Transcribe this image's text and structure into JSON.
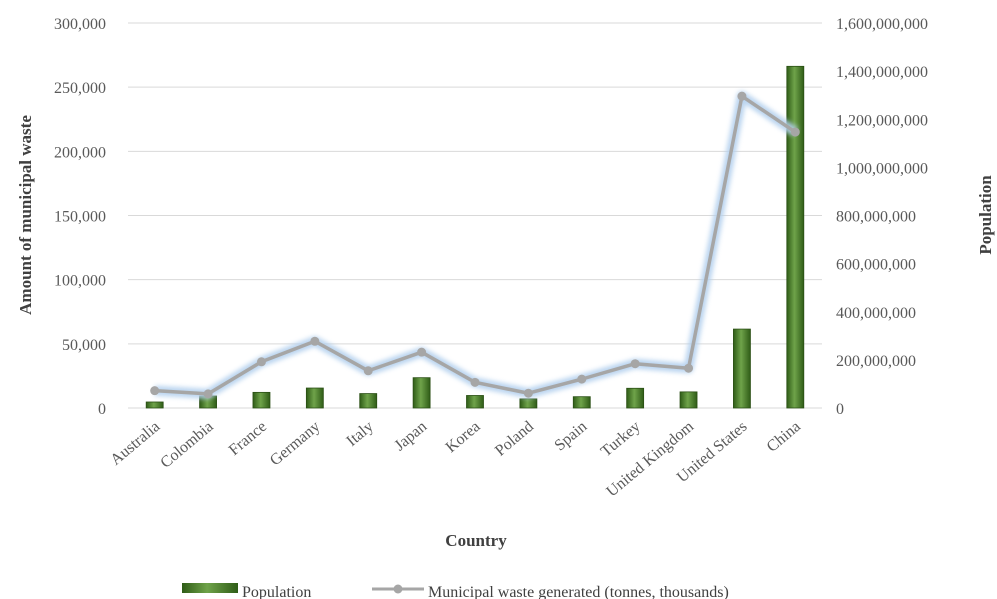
{
  "chart_data": {
    "type": "bar",
    "categories": [
      "Australia",
      "Colombia",
      "France",
      "Germany",
      "Italy",
      "Japan",
      "Korea",
      "Poland",
      "Spain",
      "Turkey",
      "United Kingdom",
      "United States",
      "China"
    ],
    "xlabel": "Country",
    "ylabel": "Amount of municipal waste",
    "y2label": "Population",
    "ylim": [
      0,
      300000
    ],
    "y2lim": [
      0,
      1600000000
    ],
    "y_ticks": [
      "0",
      "50,000",
      "100,000",
      "150,000",
      "200,000",
      "250,000",
      "300,000"
    ],
    "y2_ticks": [
      "0",
      "200,000,000",
      "400,000,000",
      "600,000,000",
      "800,000,000",
      "1,000,000,000",
      "1,200,000,000",
      "1,400,000,000",
      "1,600,000,000"
    ],
    "grid": true,
    "legend_position": "bottom",
    "series": [
      {
        "name": "Population",
        "type": "bar",
        "axis": "right",
        "color": "#4e7f2a",
        "values": [
          25000000,
          50000000,
          65000000,
          83000000,
          60000000,
          126000000,
          52000000,
          38000000,
          47000000,
          82000000,
          67000000,
          328000000,
          1420000000
        ]
      },
      {
        "name": "Municipal waste generated (tonnes, thousands)",
        "type": "line",
        "axis": "left",
        "color": "#a6a6a6",
        "glow": "#b4d0ee",
        "values": [
          13500,
          11000,
          36000,
          52000,
          29000,
          43500,
          20000,
          11500,
          22500,
          34500,
          31000,
          243000,
          215000
        ]
      }
    ]
  }
}
